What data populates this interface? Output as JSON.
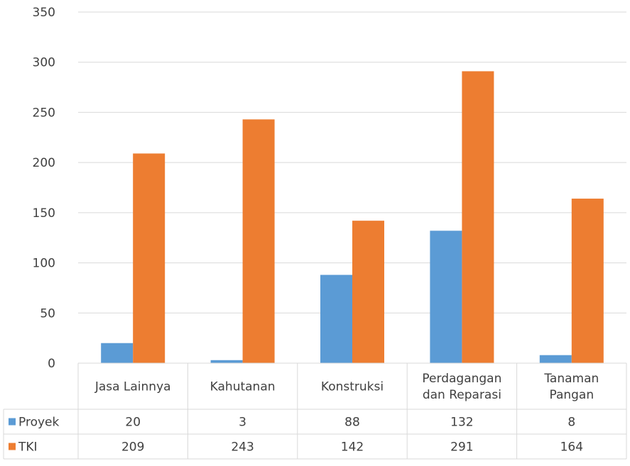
{
  "chart_data": {
    "type": "bar",
    "categories": [
      [
        "Jasa Lainnya"
      ],
      [
        "Kahutanan"
      ],
      [
        "Konstruksi"
      ],
      [
        "Perdagangan",
        "dan Reparasi"
      ],
      [
        "Tanaman",
        "Pangan"
      ]
    ],
    "series": [
      {
        "name": "Proyek",
        "color": "#5B9BD5",
        "values": [
          20,
          3,
          88,
          132,
          8
        ],
        "labels": [
          "20",
          "3",
          "88",
          "132",
          "8"
        ]
      },
      {
        "name": "TKI",
        "color": "#ED7D31",
        "values": [
          209,
          243,
          142,
          291,
          164
        ],
        "labels": [
          "209",
          "243",
          "142",
          "291",
          "164"
        ]
      }
    ],
    "ylim": [
      0,
      350
    ],
    "yticks": [
      "0",
      "50",
      "100",
      "150",
      "200",
      "250",
      "300",
      "350"
    ],
    "grid": true,
    "legend": "data-table-left"
  }
}
